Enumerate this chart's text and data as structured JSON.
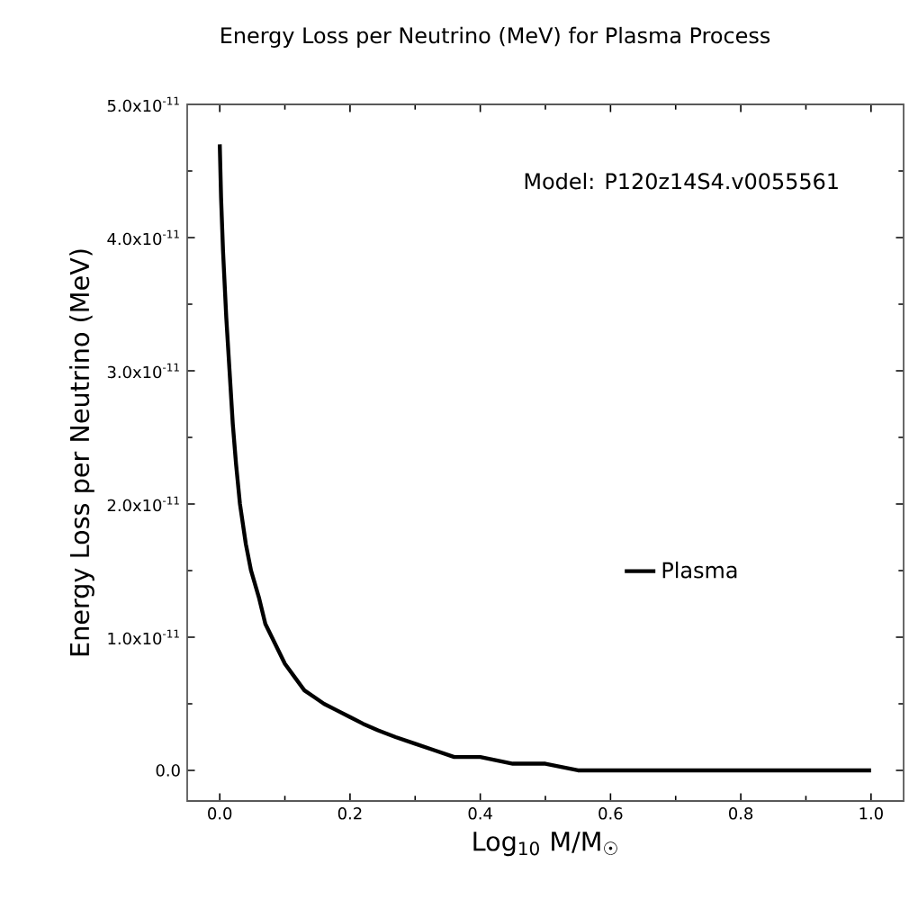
{
  "chart_data": {
    "type": "line",
    "title": "Energy Loss per Neutrino (MeV) for Plasma Process",
    "xlabel": "Log$_{10}$ M/M$_{☉}$",
    "ylabel": "Energy Loss per Neutrino (MeV)",
    "annotations": [
      "Model: P120z14S4.v0055561"
    ],
    "xlim": [
      -0.05,
      1.05
    ],
    "ylim": [
      -2.3e-12,
      5e-11
    ],
    "xticks": [
      {
        "value": 0,
        "label": "0.0"
      },
      0.2,
      0.4,
      0.6,
      0.8,
      {
        "value": 1,
        "label": "1.0"
      }
    ],
    "yticks": [
      {
        "value": 0,
        "label": "0.0"
      },
      {
        "value": 1e-11,
        "label": "1.0x10$^{-11}$"
      },
      {
        "value": 2e-11,
        "label": "2.0x10$^{-11}$"
      },
      {
        "value": 3e-11,
        "label": "3.0x10$^{-11}$"
      },
      {
        "value": 4e-11,
        "label": "4.0x10$^{-11}$"
      },
      {
        "value": 5e-11,
        "label": "5.0x10$^{-11}$"
      }
    ],
    "grid": false,
    "legend": "right",
    "marker": "none",
    "line_style": "solid",
    "series": [
      {
        "name": "Plasma",
        "color": "#000000",
        "x": [
          0.0,
          0.002,
          0.005,
          0.01,
          0.015,
          0.02,
          0.025,
          0.031,
          0.04,
          0.048,
          0.06,
          0.07,
          0.08,
          0.09,
          0.1,
          0.115,
          0.13,
          0.145,
          0.16,
          0.18,
          0.2,
          0.22,
          0.243,
          0.27,
          0.3,
          0.33,
          0.36,
          0.4,
          0.45,
          0.5,
          0.55,
          0.65,
          0.8,
          1.0
        ],
        "values": [
          4.7e-11,
          4.3e-11,
          3.9e-11,
          3.4e-11,
          3e-11,
          2.6e-11,
          2.3e-11,
          2e-11,
          1.7e-11,
          1.5e-11,
          1.3e-11,
          1.1e-11,
          1e-11,
          9e-12,
          8e-12,
          7e-12,
          6e-12,
          5.5e-12,
          5e-12,
          4.5e-12,
          4e-12,
          3.5e-12,
          3e-12,
          2.5e-12,
          2e-12,
          1.5e-12,
          1e-12,
          1e-12,
          5e-13,
          5e-13,
          0.0,
          0.0,
          0.0,
          0.0
        ]
      }
    ]
  }
}
